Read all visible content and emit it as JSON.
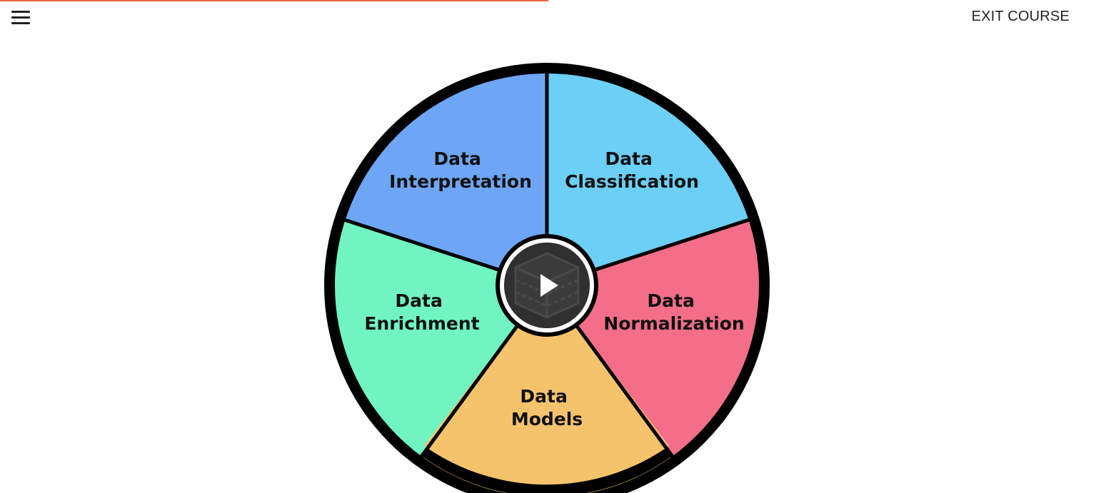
{
  "header": {
    "menu_icon": "hamburger-menu-icon",
    "exit_label": "EXIT COURSE",
    "progress_fraction": 0.5,
    "progress_color": "#e8643c"
  },
  "video": {
    "play_icon": "play-icon",
    "thumbnail_icon": "data-crate-icon",
    "segments": [
      {
        "line1": "Data",
        "line2": "Interpretation",
        "color": "#6ea6f6"
      },
      {
        "line1": "Data",
        "line2": "Classification",
        "color": "#6ccff6"
      },
      {
        "line1": "Data",
        "line2": "Normalization",
        "color": "#f46e89"
      },
      {
        "line1": "Data",
        "line2": "Models",
        "color": "#f6c36d"
      },
      {
        "line1": "Data",
        "line2": "Enrichment",
        "color": "#70f5c2"
      }
    ]
  }
}
